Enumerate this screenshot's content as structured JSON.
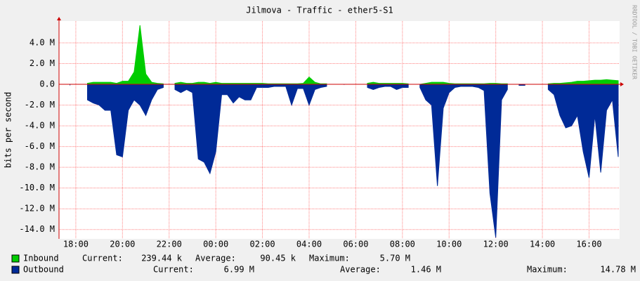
{
  "chart_data": {
    "type": "area",
    "title": "Jilmova - Traffic - ether5-S1",
    "y_label": "bits per second",
    "watermark": "RRDTOOL / TOBI OETIKER",
    "grid": true,
    "xlim": [
      17.28,
      41.31
    ],
    "ylim": [
      -14.9,
      6.1
    ],
    "xticks": [
      {
        "value": 18,
        "label": "18:00"
      },
      {
        "value": 20,
        "label": "20:00"
      },
      {
        "value": 22,
        "label": "22:00"
      },
      {
        "value": 24,
        "label": "00:00"
      },
      {
        "value": 26,
        "label": "02:00"
      },
      {
        "value": 28,
        "label": "04:00"
      },
      {
        "value": 30,
        "label": "06:00"
      },
      {
        "value": 32,
        "label": "08:00"
      },
      {
        "value": 34,
        "label": "10:00"
      },
      {
        "value": 36,
        "label": "12:00"
      },
      {
        "value": 38,
        "label": "14:00"
      },
      {
        "value": 40,
        "label": "16:00"
      }
    ],
    "yticks": [
      {
        "value": 4,
        "label": "4.0 M"
      },
      {
        "value": 2,
        "label": "2.0 M"
      },
      {
        "value": 0,
        "label": "0.0"
      },
      {
        "value": -2,
        "label": "-2.0 M"
      },
      {
        "value": -4,
        "label": "-4.0 M"
      },
      {
        "value": -6,
        "label": "-6.0 M"
      },
      {
        "value": -8,
        "label": "-8.0 M"
      },
      {
        "value": -10,
        "label": "-10.0 M"
      },
      {
        "value": -12,
        "label": "-12.0 M"
      },
      {
        "value": -14,
        "label": "-14.0 M"
      }
    ],
    "x": [
      17.5,
      17.75,
      18,
      18.25,
      18.5,
      18.75,
      19,
      19.25,
      19.5,
      19.75,
      20,
      20.25,
      20.5,
      20.75,
      21,
      21.25,
      21.5,
      21.75,
      22,
      22.25,
      22.5,
      22.75,
      23,
      23.25,
      23.5,
      23.75,
      24,
      24.25,
      24.5,
      24.75,
      25,
      25.25,
      25.5,
      25.75,
      26,
      26.25,
      26.5,
      26.75,
      27,
      27.25,
      27.5,
      27.75,
      28,
      28.25,
      28.5,
      28.75,
      29,
      29.25,
      29.5,
      29.75,
      30,
      30.25,
      30.5,
      30.75,
      31,
      31.25,
      31.5,
      31.75,
      32,
      32.25,
      32.5,
      32.75,
      33,
      33.25,
      33.5,
      33.75,
      34,
      34.25,
      34.5,
      34.75,
      35,
      35.25,
      35.5,
      35.75,
      36,
      36.25,
      36.5,
      36.75,
      37,
      37.25,
      37.5,
      37.75,
      38,
      38.25,
      38.5,
      38.75,
      39,
      39.25,
      39.5,
      39.75,
      40,
      40.25,
      40.5,
      40.75,
      41,
      41.25
    ],
    "series": [
      {
        "name": "Inbound",
        "color": "#00cc00",
        "values": [
          null,
          0,
          null,
          null,
          0.1,
          0.2,
          0.2,
          0.2,
          0.2,
          0.1,
          0.3,
          0.3,
          1.2,
          5.7,
          1.0,
          0.2,
          0.1,
          0.05,
          null,
          0.1,
          0.2,
          0.1,
          0.1,
          0.2,
          0.2,
          0.1,
          0.2,
          0.1,
          0.1,
          0.1,
          0.1,
          0.1,
          0.1,
          0.1,
          0.1,
          0.05,
          0.05,
          0.05,
          0.05,
          0.05,
          0.05,
          0.1,
          0.7,
          0.2,
          0.05,
          0.05,
          null,
          null,
          0,
          null,
          null,
          null,
          0.1,
          0.2,
          0.1,
          0.1,
          0.1,
          0.1,
          0.1,
          0.05,
          null,
          0,
          0.1,
          0.2,
          0.2,
          0.2,
          0.1,
          0.05,
          0.05,
          0.05,
          0.05,
          0.05,
          0.05,
          0.1,
          0.1,
          0.05,
          0.05,
          null,
          0,
          0,
          null,
          null,
          null,
          0.05,
          0.1,
          0.1,
          0.15,
          0.2,
          0.3,
          0.3,
          0.35,
          0.4,
          0.4,
          0.45,
          0.4,
          0.35
        ],
        "stats": [
          {
            "label": "Current:",
            "value": "239.44 k"
          },
          {
            "label": "Average:",
            "value": "90.45 k"
          },
          {
            "label": "Maximum:",
            "value": "5.70 M"
          }
        ]
      },
      {
        "name": "Outbound",
        "color": "#002a97",
        "values": [
          null,
          -0.1,
          null,
          null,
          -1.5,
          -1.8,
          -2.0,
          -2.5,
          -2.5,
          -6.8,
          -7.0,
          -2.5,
          -1.5,
          -2.0,
          -3.0,
          -1.5,
          -0.5,
          -0.3,
          null,
          -0.5,
          -0.8,
          -0.5,
          -0.8,
          -7.2,
          -7.5,
          -8.6,
          -6.5,
          -1.0,
          -1.0,
          -1.8,
          -1.2,
          -1.5,
          -1.5,
          -0.3,
          -0.3,
          -0.3,
          -0.2,
          -0.2,
          -0.2,
          -2.0,
          -0.4,
          -0.4,
          -2.0,
          -0.5,
          -0.3,
          -0.2,
          null,
          null,
          -0.05,
          null,
          null,
          null,
          -0.3,
          -0.5,
          -0.3,
          -0.2,
          -0.2,
          -0.5,
          -0.3,
          -0.3,
          null,
          -0.3,
          -1.5,
          -2.0,
          -9.8,
          -2.3,
          -0.8,
          -0.3,
          -0.2,
          -0.2,
          -0.2,
          -0.3,
          -0.6,
          -10.5,
          -14.78,
          -1.5,
          -0.5,
          null,
          -0.1,
          -0.1,
          null,
          null,
          null,
          -0.5,
          -1.0,
          -3.0,
          -4.2,
          -4.0,
          -3.0,
          -6.5,
          -9.0,
          -3.0,
          -8.5,
          -2.5,
          -1.5,
          -7.0
        ],
        "stats": [
          {
            "label": "Current:",
            "value": "6.99 M"
          },
          {
            "label": "Average:",
            "value": "1.46 M"
          },
          {
            "label": "Maximum:",
            "value": "14.78 M"
          }
        ]
      }
    ]
  }
}
